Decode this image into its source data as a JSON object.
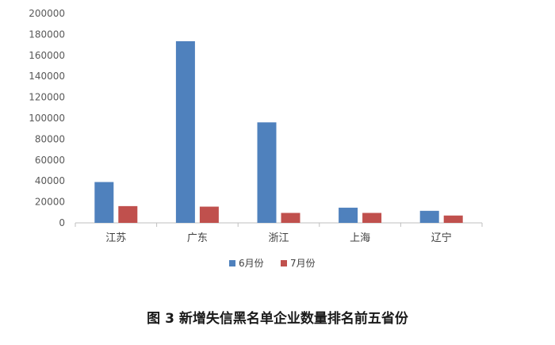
{
  "caption": "图 3  新增失信黑名单企业数量排名前五省份",
  "colors": {
    "series_1": "#4f81bd",
    "series_2": "#c0504d",
    "axis": "#bfbfbf",
    "tick_text": "#595959"
  },
  "chart_data": {
    "type": "bar",
    "title": "",
    "xlabel": "",
    "ylabel": "",
    "categories": [
      "江苏",
      "广东",
      "浙江",
      "上海",
      "辽宁"
    ],
    "series": [
      {
        "name": "6月份",
        "values": [
          39000,
          173500,
          96000,
          14500,
          11500
        ]
      },
      {
        "name": "7月份",
        "values": [
          16000,
          15500,
          9500,
          9500,
          7000
        ]
      }
    ],
    "ylim": [
      0,
      200000
    ],
    "yticks": [
      0,
      20000,
      40000,
      60000,
      80000,
      100000,
      120000,
      140000,
      160000,
      180000,
      200000
    ],
    "grid": false,
    "legend_position": "bottom"
  }
}
